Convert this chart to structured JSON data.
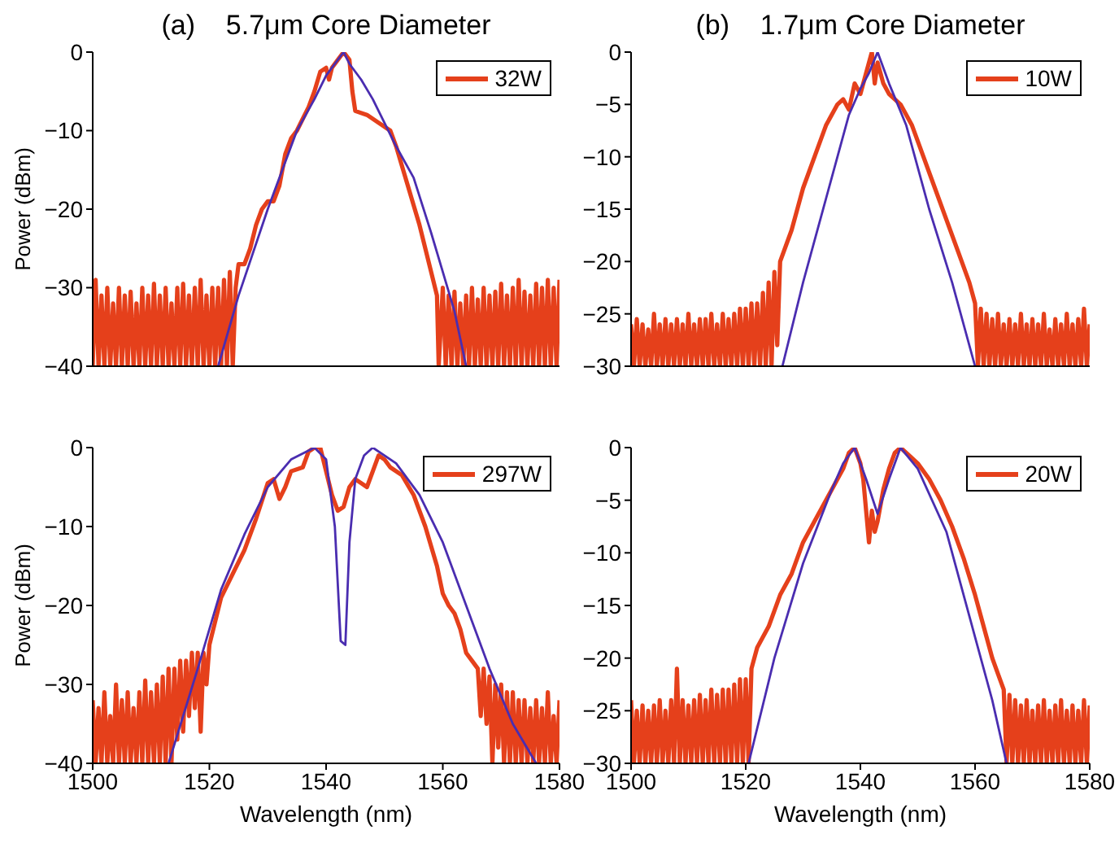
{
  "chart_data": [
    {
      "type": "line",
      "title": "(a)    5.7μm Core Diameter",
      "ylabel": "Power (dBm)",
      "xlim": [
        1500,
        1580
      ],
      "xticks": [
        1500,
        1520,
        1540,
        1560,
        1580
      ],
      "ylim": [
        -40,
        0
      ],
      "yticks": [
        -40,
        -30,
        -20,
        -10,
        0
      ],
      "tick_labels": "y",
      "legend": "top right",
      "series": [
        {
          "name": "32W",
          "color": "#e5401b",
          "x": [
            1500,
            1500.5,
            1501,
            1501.5,
            1502,
            1502.5,
            1503,
            1503.5,
            1504,
            1504.5,
            1505,
            1505.5,
            1506,
            1506.5,
            1507,
            1507.5,
            1508,
            1508.5,
            1509,
            1509.5,
            1510,
            1510.5,
            1511,
            1511.5,
            1512,
            1512.5,
            1513,
            1513.5,
            1514,
            1514.5,
            1515,
            1515.5,
            1516,
            1516.5,
            1517,
            1517.5,
            1518,
            1518.5,
            1519,
            1519.5,
            1520,
            1520.5,
            1521,
            1521.5,
            1522,
            1522.5,
            1523,
            1523.5,
            1524,
            1524.5,
            1525,
            1526,
            1527,
            1528,
            1529,
            1530,
            1531,
            1532,
            1533,
            1534,
            1535,
            1536,
            1537,
            1538,
            1539,
            1540,
            1540.5,
            1541,
            1542,
            1543,
            1544,
            1544.5,
            1545,
            1547,
            1549,
            1551,
            1552,
            1554,
            1556,
            1558,
            1559,
            1559.3,
            1560,
            1560.5,
            1561,
            1561.5,
            1562,
            1562.5,
            1563,
            1563.5,
            1564,
            1564.5,
            1565,
            1565.5,
            1566,
            1566.5,
            1567,
            1567.5,
            1568,
            1568.5,
            1569,
            1569.5,
            1570,
            1570.5,
            1571,
            1571.5,
            1572,
            1572.5,
            1573,
            1573.5,
            1574,
            1574.5,
            1575,
            1575.5,
            1576,
            1576.5,
            1577,
            1577.5,
            1578,
            1578.5,
            1579,
            1579.5,
            1580
          ],
          "values": [
            -40,
            -29,
            -40,
            -31,
            -40,
            -30,
            -40,
            -32,
            -40,
            -30,
            -40,
            -31,
            -40,
            -30.5,
            -40,
            -32,
            -40,
            -30,
            -40,
            -31,
            -40,
            -29.5,
            -40,
            -31,
            -40,
            -30,
            -40,
            -32,
            -40,
            -30,
            -40,
            -29.5,
            -40,
            -31,
            -40,
            -30,
            -40,
            -29,
            -40,
            -31,
            -40,
            -30,
            -40,
            -30,
            -40,
            -29,
            -40,
            -28,
            -40,
            -30,
            -27,
            -27,
            -25,
            -22,
            -20,
            -19,
            -19,
            -17,
            -13,
            -11,
            -10,
            -8.5,
            -7,
            -5,
            -2.5,
            -2,
            -3.5,
            -2,
            -1,
            0,
            -1,
            -5,
            -7.5,
            -8,
            -9,
            -10,
            -12,
            -17,
            -22,
            -28,
            -31,
            -40,
            -30,
            -40,
            -31,
            -40,
            -30.5,
            -40,
            -32,
            -40,
            -31,
            -40,
            -30,
            -40,
            -31.5,
            -40,
            -30,
            -40,
            -31,
            -40,
            -30.5,
            -40,
            -29.5,
            -40,
            -31,
            -40,
            -30,
            -40,
            -29,
            -40,
            -30.5,
            -40,
            -31,
            -40,
            -29.5,
            -40,
            -30,
            -40,
            -29,
            -40,
            -30,
            -40,
            -29
          ]
        },
        {
          "color": "#4a2db0",
          "x": [
            1521.5,
            1525,
            1530,
            1535,
            1538,
            1540,
            1542,
            1543,
            1544,
            1546,
            1548,
            1550,
            1552,
            1555,
            1558,
            1560,
            1562,
            1564
          ],
          "values": [
            -40,
            -31,
            -20,
            -10,
            -6,
            -3,
            -1,
            0,
            -1.5,
            -3.5,
            -6,
            -9,
            -12,
            -16,
            -23,
            -28,
            -33,
            -40
          ]
        }
      ]
    },
    {
      "type": "line",
      "title": "(b)    1.7μm Core Diameter",
      "xlim": [
        1500,
        1580
      ],
      "xticks": [
        1500,
        1520,
        1540,
        1560,
        1580
      ],
      "ylim": [
        -30,
        0
      ],
      "yticks": [
        -30,
        -25,
        -20,
        -15,
        -10,
        -5,
        0
      ],
      "tick_labels": "y",
      "legend": "top right",
      "series": [
        {
          "name": "10W",
          "color": "#e5401b",
          "x": [
            1500,
            1500.5,
            1501,
            1501.5,
            1502,
            1502.5,
            1503,
            1503.5,
            1504,
            1504.5,
            1505,
            1505.5,
            1506,
            1506.5,
            1507,
            1507.5,
            1508,
            1508.5,
            1509,
            1509.5,
            1510,
            1510.5,
            1511,
            1511.5,
            1512,
            1512.5,
            1513,
            1513.5,
            1514,
            1514.5,
            1515,
            1515.5,
            1516,
            1516.5,
            1517,
            1517.5,
            1518,
            1518.5,
            1519,
            1519.5,
            1520,
            1520.5,
            1521,
            1521.5,
            1522,
            1522.5,
            1523,
            1523.5,
            1524,
            1524.5,
            1525,
            1525.5,
            1526,
            1528,
            1530,
            1532,
            1534,
            1536,
            1537,
            1538,
            1539,
            1540,
            1541,
            1542,
            1542.5,
            1543,
            1544,
            1545,
            1547,
            1549,
            1551,
            1553,
            1555,
            1557,
            1559,
            1560,
            1560.5,
            1561,
            1561.5,
            1562,
            1562.5,
            1563,
            1563.5,
            1564,
            1564.5,
            1565,
            1565.5,
            1566,
            1566.5,
            1567,
            1567.5,
            1568,
            1568.5,
            1569,
            1569.5,
            1570,
            1570.5,
            1571,
            1571.5,
            1572,
            1572.5,
            1573,
            1573.5,
            1574,
            1574.5,
            1575,
            1575.5,
            1576,
            1576.5,
            1577,
            1577.5,
            1578,
            1578.5,
            1579,
            1579.5,
            1580
          ],
          "values": [
            -26,
            -30,
            -25.5,
            -30,
            -26,
            -30,
            -26.5,
            -30,
            -25,
            -30,
            -26,
            -30,
            -25.5,
            -30,
            -26,
            -30,
            -25.5,
            -30,
            -26,
            -30,
            -25,
            -30,
            -26,
            -30,
            -25.5,
            -30,
            -25.5,
            -30,
            -25,
            -30,
            -26,
            -30,
            -25,
            -30,
            -25.5,
            -30,
            -25,
            -30,
            -24.5,
            -30,
            -24.5,
            -30,
            -24,
            -30,
            -24,
            -30,
            -23,
            -30,
            -22,
            -30,
            -21,
            -28,
            -20,
            -17,
            -13,
            -10,
            -7,
            -5,
            -4.5,
            -5.5,
            -3,
            -4,
            -2,
            0,
            -3,
            -1,
            -3,
            -4,
            -5,
            -7,
            -10,
            -13,
            -16,
            -19,
            -22,
            -24,
            -30,
            -24.5,
            -30,
            -25,
            -30,
            -25.5,
            -30,
            -25,
            -30,
            -26,
            -30,
            -25.5,
            -30,
            -26,
            -30,
            -25,
            -30,
            -26,
            -30,
            -25.5,
            -30,
            -26,
            -30,
            -25,
            -30,
            -26.5,
            -30,
            -25.5,
            -30,
            -26,
            -30,
            -25,
            -30,
            -26,
            -30,
            -25.5,
            -30,
            -24.5,
            -30,
            -26
          ]
        },
        {
          "color": "#4a2db0",
          "x": [
            1526.4,
            1530,
            1535,
            1538,
            1540,
            1541.5,
            1543,
            1544,
            1545,
            1548,
            1552,
            1556,
            1560
          ],
          "values": [
            -30,
            -22,
            -12,
            -6,
            -3.5,
            -2,
            0,
            -1.5,
            -3,
            -7,
            -15,
            -22,
            -30
          ]
        }
      ]
    },
    {
      "type": "line",
      "xlabel": "Wavelength (nm)",
      "ylabel": "Power (dBm)",
      "xlim": [
        1500,
        1580
      ],
      "xticks": [
        1500,
        1520,
        1540,
        1560,
        1580
      ],
      "ylim": [
        -40,
        0
      ],
      "yticks": [
        -40,
        -30,
        -20,
        -10,
        0
      ],
      "legend": "top right",
      "series": [
        {
          "name": "297W",
          "color": "#e5401b",
          "x": [
            1500,
            1500.5,
            1501,
            1501.5,
            1502,
            1502.5,
            1503,
            1503.5,
            1504,
            1504.5,
            1505,
            1505.5,
            1506,
            1506.5,
            1507,
            1507.5,
            1508,
            1508.5,
            1509,
            1509.5,
            1510,
            1510.5,
            1511,
            1511.5,
            1512,
            1512.5,
            1513,
            1513.5,
            1514,
            1514.5,
            1515,
            1515.5,
            1516,
            1516.5,
            1517,
            1517.5,
            1518,
            1518.5,
            1519,
            1519.5,
            1520,
            1521,
            1522,
            1524,
            1526,
            1528,
            1530,
            1531,
            1532,
            1533,
            1534,
            1536,
            1537,
            1538,
            1539,
            1540,
            1541,
            1542,
            1543,
            1544,
            1545,
            1546,
            1547,
            1548,
            1549,
            1550,
            1551,
            1553,
            1555,
            1557,
            1559,
            1560,
            1561,
            1562,
            1563,
            1564,
            1565,
            1566,
            1566.5,
            1567,
            1567.5,
            1568,
            1568.5,
            1569,
            1569.5,
            1570,
            1570.5,
            1571,
            1571.5,
            1572,
            1572.5,
            1573,
            1573.5,
            1574,
            1574.5,
            1575,
            1575.5,
            1576,
            1576.5,
            1577,
            1577.5,
            1578,
            1578.5,
            1579,
            1579.5,
            1580
          ],
          "values": [
            -32,
            -40,
            -33,
            -40,
            -31,
            -40,
            -34,
            -40,
            -30,
            -40,
            -32,
            -40,
            -31,
            -40,
            -33,
            -40,
            -31,
            -40,
            -29.5,
            -40,
            -31,
            -40,
            -30,
            -40,
            -29,
            -40,
            -28,
            -40,
            -28,
            -37,
            -27,
            -36,
            -27,
            -34,
            -26,
            -33,
            -26,
            -36,
            -26,
            -30,
            -25,
            -22,
            -19,
            -16,
            -13,
            -9,
            -4.5,
            -4,
            -6.5,
            -5,
            -3,
            -2.5,
            -0.5,
            0,
            0,
            -3,
            -6,
            -8,
            -7.5,
            -5,
            -4,
            -4.5,
            -5,
            -3,
            -1,
            -1.5,
            -2.5,
            -3.5,
            -6,
            -10,
            -15,
            -18.5,
            -20,
            -21,
            -23,
            -26,
            -27,
            -28,
            -34,
            -28,
            -35,
            -29,
            -40,
            -30,
            -38,
            -30,
            -40,
            -31,
            -40,
            -31,
            -40,
            -32,
            -40,
            -32,
            -40,
            -33,
            -40,
            -32,
            -40,
            -33,
            -40,
            -31,
            -40,
            -34,
            -40,
            -32
          ]
        },
        {
          "color": "#4a2db0",
          "x": [
            1513,
            1518,
            1522,
            1526,
            1530,
            1534,
            1538,
            1540,
            1541.5,
            1542.5,
            1543.3,
            1544,
            1545,
            1546.5,
            1548,
            1552,
            1556,
            1560,
            1564,
            1568,
            1572,
            1576
          ],
          "values": [
            -40,
            -28,
            -18,
            -11,
            -5,
            -1.5,
            0,
            -1.5,
            -10,
            -24.5,
            -25,
            -12,
            -4,
            -1,
            0,
            -2,
            -6,
            -12,
            -20,
            -28,
            -35,
            -40
          ]
        }
      ]
    },
    {
      "type": "line",
      "xlabel": "Wavelength (nm)",
      "xlim": [
        1500,
        1580
      ],
      "xticks": [
        1500,
        1520,
        1540,
        1560,
        1580
      ],
      "ylim": [
        -30,
        0
      ],
      "yticks": [
        -30,
        -25,
        -20,
        -15,
        -10,
        -5,
        0
      ],
      "legend": "top right",
      "series": [
        {
          "name": "20W",
          "color": "#e5401b",
          "x": [
            1500,
            1500.5,
            1501,
            1501.5,
            1502,
            1502.5,
            1503,
            1503.5,
            1504,
            1504.5,
            1505,
            1505.5,
            1506,
            1506.5,
            1507,
            1507.5,
            1508,
            1508.5,
            1509,
            1509.5,
            1510,
            1510.5,
            1511,
            1511.5,
            1512,
            1512.5,
            1513,
            1513.5,
            1514,
            1514.5,
            1515,
            1515.5,
            1516,
            1516.5,
            1517,
            1517.5,
            1518,
            1518.5,
            1519,
            1519.5,
            1520,
            1520.5,
            1521,
            1522,
            1524,
            1526,
            1528,
            1530,
            1532,
            1534,
            1536,
            1537,
            1538,
            1539,
            1540,
            1540.5,
            1541,
            1541.5,
            1542,
            1542.5,
            1543,
            1544,
            1545,
            1546,
            1547,
            1548,
            1550,
            1552,
            1554,
            1556,
            1558,
            1560,
            1562,
            1563,
            1564,
            1565,
            1565.5,
            1566,
            1566.5,
            1567,
            1567.5,
            1568,
            1568.5,
            1569,
            1569.5,
            1570,
            1570.5,
            1571,
            1571.5,
            1572,
            1572.5,
            1573,
            1573.5,
            1574,
            1574.5,
            1575,
            1575.5,
            1576,
            1576.5,
            1577,
            1577.5,
            1578,
            1578.5,
            1579,
            1579.5,
            1580
          ],
          "values": [
            -24,
            -30,
            -25,
            -30,
            -24.5,
            -30,
            -25,
            -30,
            -24.5,
            -30,
            -24,
            -30,
            -25,
            -30,
            -24,
            -30,
            -21,
            -30,
            -24,
            -30,
            -24.5,
            -30,
            -24,
            -30,
            -23.5,
            -30,
            -24,
            -30,
            -23,
            -30,
            -23.5,
            -30,
            -23,
            -30,
            -23,
            -30,
            -22.5,
            -30,
            -22,
            -30,
            -22,
            -30,
            -21,
            -19,
            -17,
            -14,
            -12,
            -9,
            -7,
            -5,
            -3,
            -2,
            -0.5,
            0,
            -1.5,
            -3,
            -6,
            -9,
            -6,
            -8,
            -7,
            -4,
            -2,
            -0.5,
            0,
            -0.5,
            -1.5,
            -3,
            -5,
            -7.5,
            -10.5,
            -14,
            -18,
            -20,
            -21.5,
            -23,
            -30,
            -23.5,
            -30,
            -24,
            -30,
            -24.5,
            -30,
            -24,
            -30,
            -25,
            -30,
            -24.5,
            -30,
            -24,
            -30,
            -25,
            -30,
            -24.5,
            -30,
            -24,
            -30,
            -25,
            -30,
            -24.5,
            -30,
            -25,
            -30,
            -24,
            -30,
            -24.5
          ]
        },
        {
          "color": "#4a2db0",
          "x": [
            1520.5,
            1525,
            1530,
            1535,
            1537,
            1539,
            1541,
            1543,
            1545,
            1547,
            1550,
            1555,
            1560,
            1563,
            1565.5
          ],
          "values": [
            -30,
            -20,
            -11,
            -4,
            -1.5,
            0,
            -3,
            -6.3,
            -3,
            0,
            -2,
            -8,
            -18,
            -24,
            -30
          ]
        }
      ]
    }
  ]
}
